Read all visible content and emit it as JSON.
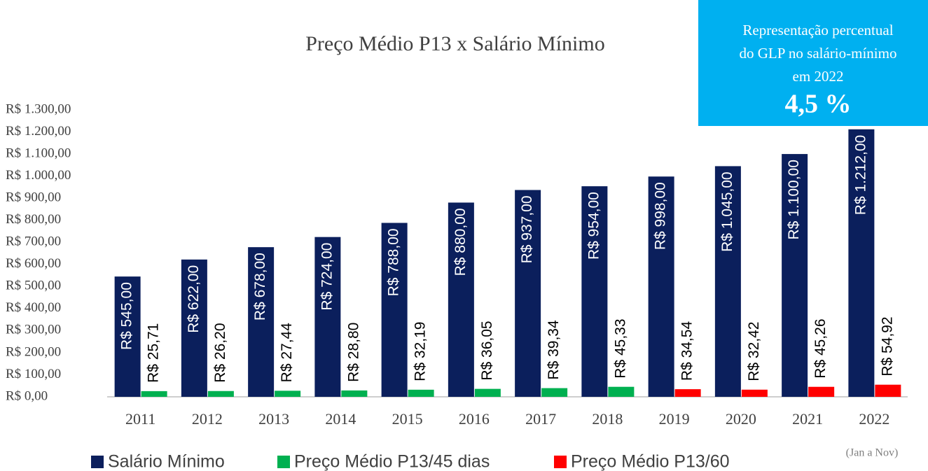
{
  "chart_data": {
    "type": "bar",
    "title": "Preço Médio P13 x Salário Mínimo",
    "categories": [
      "2011",
      "2012",
      "2013",
      "2014",
      "2015",
      "2016",
      "2017",
      "2018",
      "2019",
      "2020",
      "2021",
      "2022"
    ],
    "series": [
      {
        "name": "Salário Mínimo",
        "color": "#0b1f5c",
        "values": [
          545,
          622,
          678,
          724,
          788,
          880,
          937,
          954,
          998,
          1045,
          1100,
          1212
        ],
        "value_labels": [
          "R$ 545,00",
          "R$ 622,00",
          "R$ 678,00",
          "R$ 724,00",
          "R$ 788,00",
          "R$ 880,00",
          "R$ 937,00",
          "R$ 954,00",
          "R$ 998,00",
          "R$ 1.045,00",
          "R$ 1.100,00",
          "R$ 1.212,00"
        ]
      },
      {
        "name": "Preço Médio P13/45 dias",
        "color": "#00b050",
        "values": [
          25.71,
          26.2,
          27.44,
          28.8,
          32.19,
          36.05,
          39.34,
          45.33,
          null,
          null,
          null,
          null
        ],
        "value_labels": [
          "R$ 25,71",
          "R$ 26,20",
          "R$ 27,44",
          "R$ 28,80",
          "R$ 32,19",
          "R$ 36,05",
          "R$ 39,34",
          "R$ 45,33",
          null,
          null,
          null,
          null
        ]
      },
      {
        "name": "Preço Médio P13/60",
        "color": "#ff0000",
        "values": [
          null,
          null,
          null,
          null,
          null,
          null,
          null,
          null,
          34.54,
          32.42,
          45.26,
          54.92
        ],
        "value_labels": [
          null,
          null,
          null,
          null,
          null,
          null,
          null,
          null,
          "R$ 34,54",
          "R$ 32,42",
          "R$ 45,26",
          "R$ 54,92"
        ]
      }
    ],
    "ylim": [
      0,
      1300
    ],
    "yticks": [
      {
        "value": 0,
        "label": "R$ 0,00"
      },
      {
        "value": 100,
        "label": "R$ 100,00"
      },
      {
        "value": 200,
        "label": "R$ 200,00"
      },
      {
        "value": 300,
        "label": "R$ 300,00"
      },
      {
        "value": 400,
        "label": "R$ 400,00"
      },
      {
        "value": 500,
        "label": "R$ 500,00"
      },
      {
        "value": 600,
        "label": "R$ 600,00"
      },
      {
        "value": 700,
        "label": "R$ 700,00"
      },
      {
        "value": 800,
        "label": "R$ 800,00"
      },
      {
        "value": 900,
        "label": "R$ 900,00"
      },
      {
        "value": 1000,
        "label": "R$ 1.000,00"
      },
      {
        "value": 1100,
        "label": "R$ 1.100,00"
      },
      {
        "value": 1200,
        "label": "R$ 1.200,00"
      },
      {
        "value": 1300,
        "label": "R$ 1.300,00"
      }
    ],
    "grid": false,
    "annotations": {
      "box_lines": [
        "Representação percentual",
        "do GLP no salário-mínimo",
        "em 2022"
      ],
      "box_value": "4,5 %",
      "note": "(Jan a Nov)"
    }
  }
}
